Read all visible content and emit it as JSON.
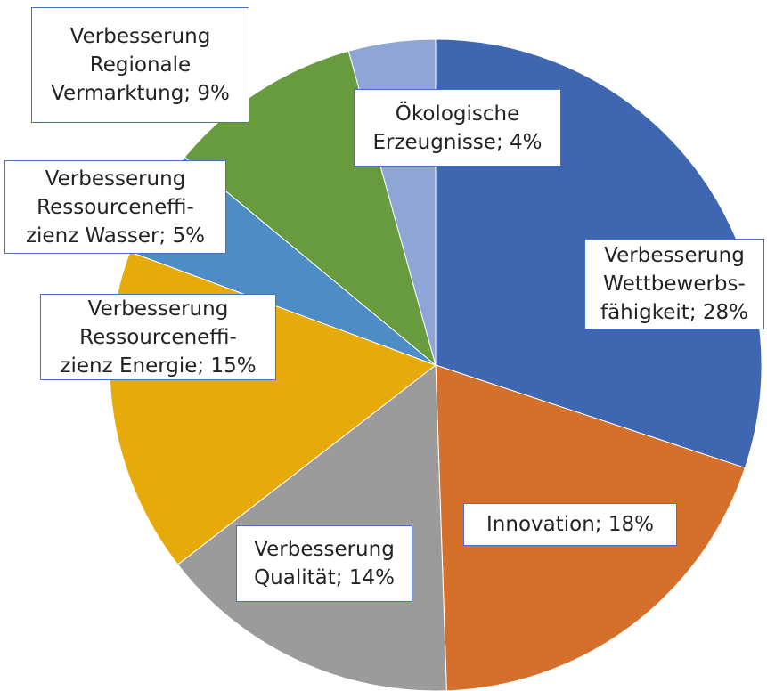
{
  "chart_data": {
    "type": "pie",
    "categories": [
      "Verbesserung\nWettbewerbs-\nfähigkeit",
      "Innovation",
      "Verbesserung\nQualität",
      "Verbesserung\nRessourceneffi-\nzienz Energie",
      "Verbesserung\nRessourceneffi-\nzienz Wasser",
      "Verbesserung\nRegionale\nVermarktung",
      "Ökologische\nErzeugnisse"
    ],
    "values": [
      28,
      18,
      14,
      15,
      5,
      9,
      4
    ],
    "value_labels": [
      "28%",
      "18%",
      "14%",
      "15%",
      "5%",
      "9%",
      "4%"
    ],
    "label_separator": "; ",
    "colors": [
      "#3f67b1",
      "#d4702c",
      "#9b9b9b",
      "#e6aa0b",
      "#4d8cc4",
      "#679b3d",
      "#8fa5d6"
    ]
  }
}
